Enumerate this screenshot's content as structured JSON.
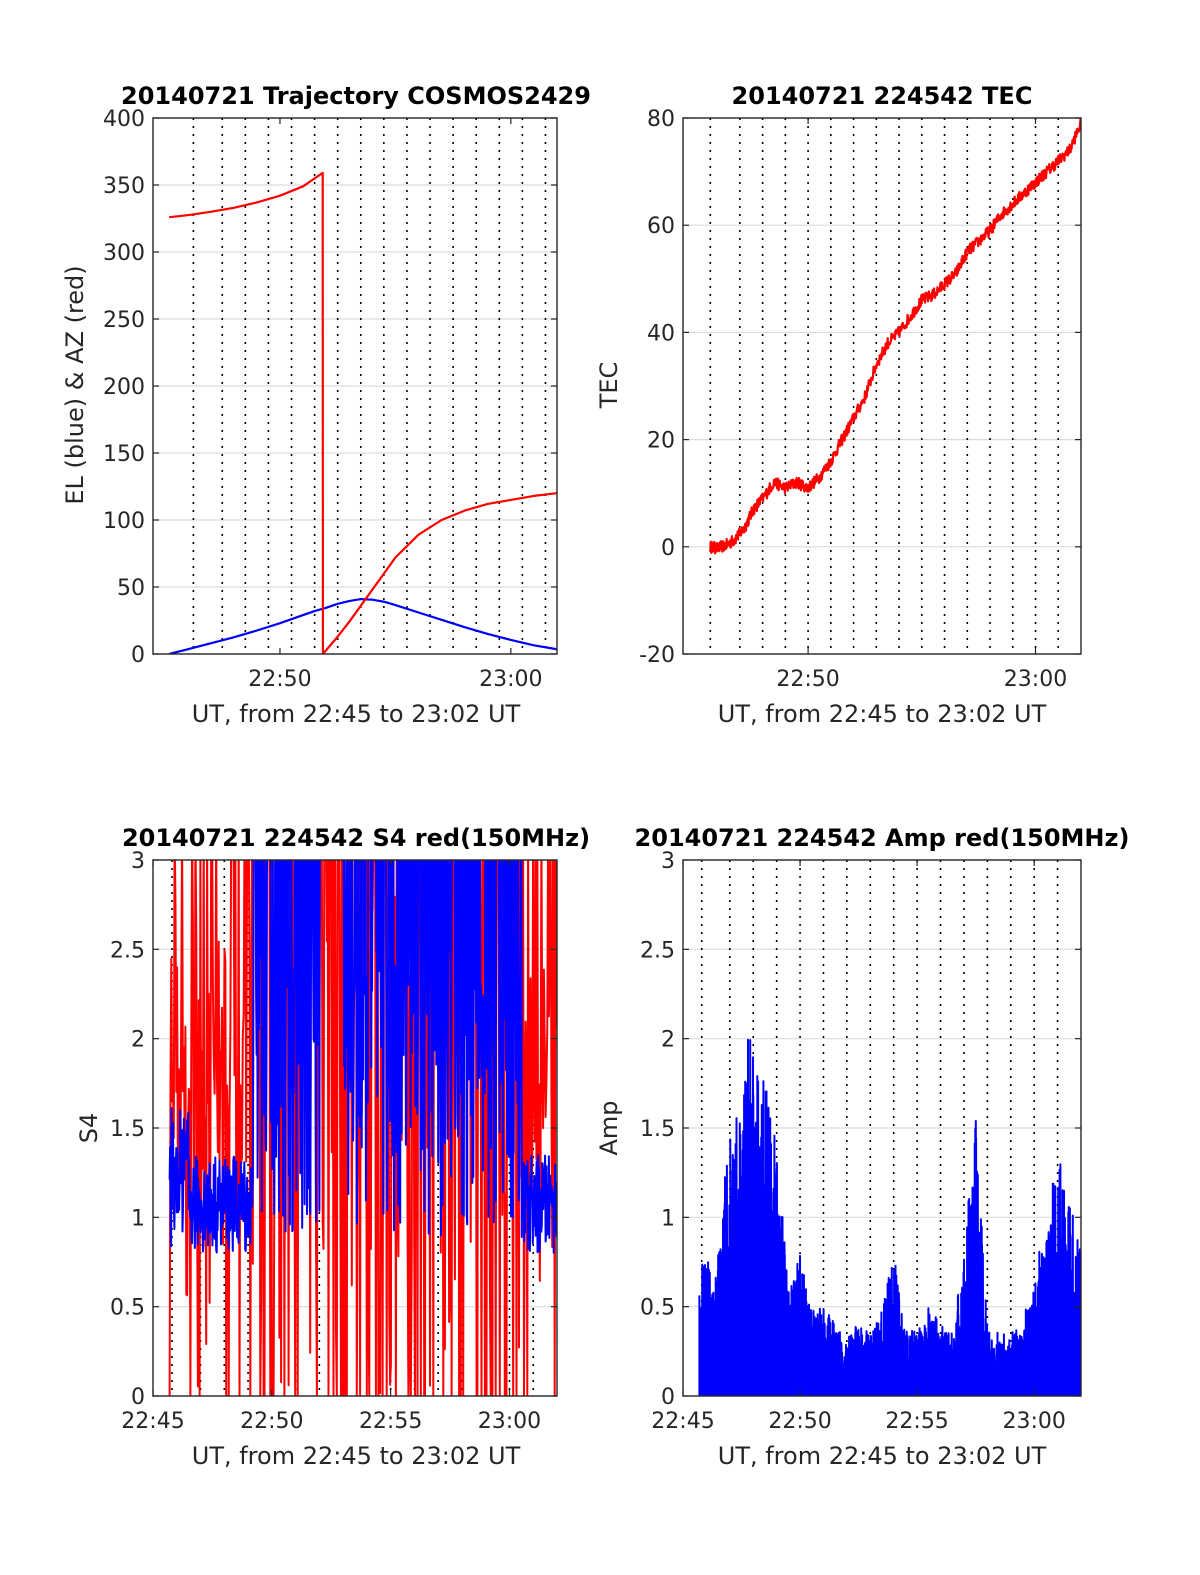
{
  "chart_data": [
    {
      "type": "line",
      "title": "20140721 Trajectory COSMOS2429",
      "xlabel": "UT, from 22:45 to 23:02 UT",
      "ylabel": "EL (blue) & AZ (red)",
      "xlim": [
        -0.5,
        17
      ],
      "ylim": [
        0,
        400
      ],
      "yticks": [
        0,
        50,
        100,
        150,
        200,
        250,
        300,
        350,
        400
      ],
      "xticks": [
        {
          "x": 5,
          "label": "22:50"
        },
        {
          "x": 15,
          "label": "23:00"
        }
      ],
      "vgrid_x": [
        1.25,
        2.5,
        3.5,
        4.5,
        5.5,
        6.5,
        7.5,
        8.5,
        9.5,
        10.5,
        11.5,
        12.5,
        13.5,
        14.5,
        15.5,
        16.5
      ],
      "grid": true,
      "series": [
        {
          "color": "#0000ff",
          "x": [
            0.2,
            1,
            2,
            3,
            4,
            5,
            6,
            6.5,
            7,
            7.5,
            8,
            8.5,
            9,
            9.5,
            10,
            11,
            12,
            13,
            14,
            15,
            16,
            17
          ],
          "values": [
            0,
            3.5,
            8,
            12.5,
            17.5,
            23,
            29,
            32,
            34.5,
            37.5,
            39.5,
            41,
            40.5,
            39,
            36.5,
            31,
            25.5,
            20,
            15,
            10.5,
            6.5,
            3.5
          ]
        },
        {
          "color": "#ff0000",
          "x": [
            0.2,
            1,
            2,
            3,
            4,
            5,
            6,
            6.85,
            6.86,
            7.5,
            8,
            8.5,
            9,
            9.5,
            10,
            11,
            12,
            13,
            14,
            15,
            16,
            17
          ],
          "values": [
            326,
            327.5,
            330,
            333,
            337,
            342,
            349,
            359,
            0,
            13,
            24,
            36,
            48,
            60,
            72,
            89,
            100,
            107,
            112,
            115,
            118,
            120
          ]
        }
      ]
    },
    {
      "type": "line",
      "title": "20140721 224542 TEC",
      "xlabel": "UT, from 22:45 to 23:02 UT",
      "ylabel": "TEC",
      "xlim": [
        -0.5,
        17
      ],
      "ylim": [
        -20,
        80
      ],
      "yticks": [
        -20,
        0,
        20,
        40,
        60,
        80
      ],
      "xticks": [
        {
          "x": 5,
          "label": "22:50"
        },
        {
          "x": 15,
          "label": "23:00"
        }
      ],
      "vgrid_x": [
        0.7,
        2,
        3,
        4,
        5,
        6,
        7,
        8,
        9,
        10,
        11,
        12,
        13,
        14,
        15,
        16
      ],
      "grid": true,
      "series": [
        {
          "color": "#ff0000",
          "x": [
            0.7,
            1,
            1.5,
            1.8,
            2.2,
            2.6,
            3,
            3.5,
            4,
            4.5,
            5,
            5.5,
            6,
            6.5,
            7,
            7.5,
            8,
            8.5,
            9,
            9.5,
            10,
            10.5,
            11,
            11.5,
            12,
            12.5,
            13,
            13.5,
            14,
            14.5,
            15,
            15.5,
            16,
            16.5,
            17
          ],
          "values": [
            0,
            -0.3,
            0.5,
            1.5,
            3.5,
            7,
            9,
            12,
            11,
            12,
            11,
            13,
            16,
            20,
            24,
            28,
            34,
            38,
            40,
            43,
            46,
            47,
            49,
            51,
            55,
            57,
            59,
            62,
            64,
            66,
            68,
            70,
            72,
            74,
            79
          ]
        }
      ]
    },
    {
      "type": "line",
      "title": "20140721 224542 S4 red(150MHz)",
      "xlabel": "UT, from 22:45 to 23:02 UT",
      "ylabel": "S4",
      "xlim": [
        0,
        17
      ],
      "ylim": [
        0,
        3
      ],
      "yticks": [
        0,
        0.5,
        1,
        1.5,
        2,
        2.5,
        3
      ],
      "xticks": [
        {
          "x": 0,
          "label": "22:45"
        },
        {
          "x": 5,
          "label": "22:50"
        },
        {
          "x": 10,
          "label": "22:55"
        },
        {
          "x": 15,
          "label": "23:00"
        }
      ],
      "vgrid_x": [
        0.8,
        2,
        3,
        4,
        5,
        6,
        7,
        8,
        9,
        10,
        11,
        12,
        13,
        14,
        15,
        16
      ],
      "grid": true,
      "series": [
        {
          "color": "#ff0000",
          "x_range": [
            0.7,
            17
          ],
          "band": "high-variability",
          "values_min": 0,
          "values_max": 3
        },
        {
          "color": "#0000ff",
          "x_range": [
            0.7,
            17
          ],
          "band": "variability",
          "values_min": 0,
          "values_max": 3
        }
      ]
    },
    {
      "type": "line",
      "title": "20140721 224542 Amp red(150MHz)",
      "xlabel": "UT, from 22:45 to 23:02 UT",
      "ylabel": "Amp",
      "xlim": [
        0,
        17
      ],
      "ylim": [
        0,
        3
      ],
      "yticks": [
        0,
        0.5,
        1,
        1.5,
        2,
        2.5,
        3
      ],
      "xticks": [
        {
          "x": 0,
          "label": "22:45"
        },
        {
          "x": 5,
          "label": "22:50"
        },
        {
          "x": 10,
          "label": "22:55"
        },
        {
          "x": 15,
          "label": "23:00"
        }
      ],
      "vgrid_x": [
        0.8,
        2,
        3,
        4,
        5,
        6,
        7,
        8,
        9,
        10,
        11,
        12,
        13,
        14,
        15,
        16
      ],
      "grid": true,
      "series": [
        {
          "color": "#0000ff",
          "x": [
            0.7,
            1,
            1.3,
            1.6,
            1.9,
            2.2,
            2.5,
            2.8,
            3.1,
            3.4,
            3.7,
            4,
            4.5,
            5,
            5.5,
            6,
            6.5,
            7,
            7.5,
            8,
            8.5,
            9,
            9.5,
            10,
            10.5,
            11,
            11.5,
            12,
            12.5,
            13,
            13.5,
            14,
            14.5,
            15,
            15.5,
            16,
            16.5,
            17
          ],
          "values": [
            0.7,
            0.8,
            0.6,
            0.9,
            1.5,
            1.6,
            1.65,
            2.07,
            1.8,
            1.9,
            1.6,
            1.45,
            0.6,
            0.8,
            0.5,
            0.5,
            0.4,
            0.35,
            0.4,
            0.35,
            0.5,
            0.8,
            0.4,
            0.35,
            0.5,
            0.4,
            0.35,
            0.8,
            1.56,
            0.4,
            0.35,
            0.35,
            0.4,
            0.75,
            0.9,
            1.4,
            1.1,
            0.8
          ]
        }
      ]
    }
  ]
}
